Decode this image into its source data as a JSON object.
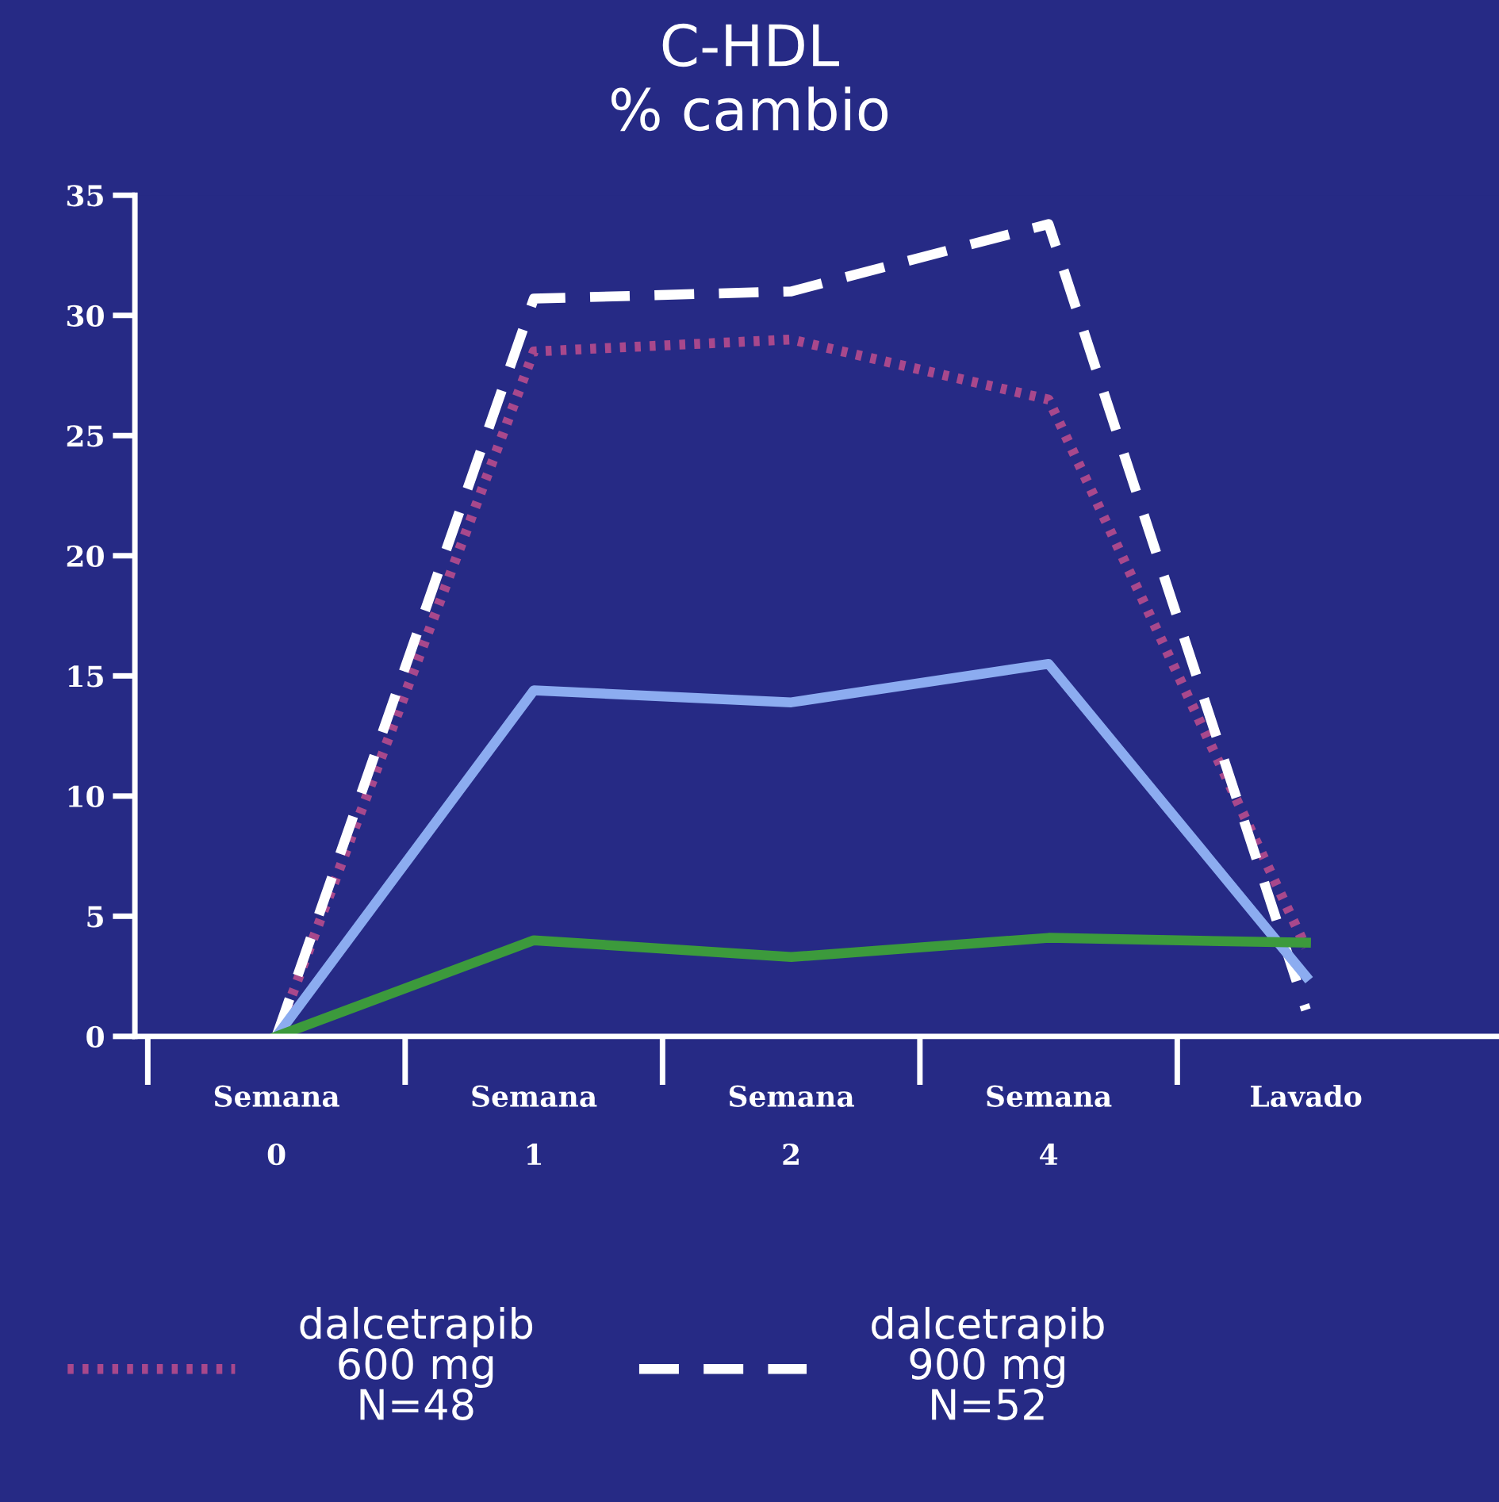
{
  "chart_data": {
    "type": "line",
    "title": "C-HDL\n% cambio",
    "categories": [
      "Semana\n0",
      "Semana\n1",
      "Semana\n2",
      "Semana\n4",
      "Lavado"
    ],
    "series": [
      {
        "name": "dalcetrapib\n600 mg\nN=48",
        "color": "#a8488c",
        "line_style": "dotted",
        "values": [
          0,
          28.5,
          29.0,
          26.5,
          3.7
        ]
      },
      {
        "name": "dalcetrapib\n900 mg\nN=52",
        "color": "#ffffff",
        "line_style": "dashed",
        "values": [
          0,
          30.7,
          31.0,
          33.8,
          1.1
        ]
      },
      {
        "color": "#8cacf0",
        "line_style": "solid",
        "values": [
          0,
          14.4,
          13.9,
          15.5,
          2.5
        ]
      },
      {
        "color": "#3c9a3c",
        "line_style": "solid",
        "values": [
          0,
          4.0,
          3.3,
          4.1,
          3.9
        ]
      }
    ],
    "ylim": [
      0,
      35
    ],
    "yticks": [
      0,
      5,
      10,
      15,
      20,
      25,
      30,
      35
    ],
    "grid": false,
    "legend": "bottom",
    "marker": "none"
  }
}
